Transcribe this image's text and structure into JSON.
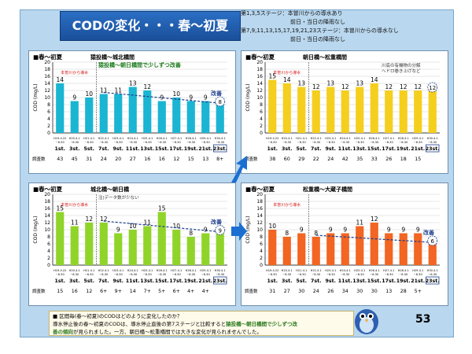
{
  "title": "CODの変化・・・春～初夏",
  "legend_lines": [
    "第1,3,5ステージ：本曽川からの導水あり",
    "　　　　　　　　　前日・当日の降雨なし",
    "第7,9,11,13,15,17,19,21,23ステージ：本曽川からの導水なし",
    "　　　　　　　　　前日・当日の降雨なし"
  ],
  "footer_text": {
    "line1": "■ 区間毎(春～初夏)のCODはどのように変化したのか？",
    "line2a": "導水停止後の春～初夏のCODは、導水停止直後の第7ステージと比較すると",
    "line2b": "猿投橋～朝日橋間で少しずつ改",
    "line3a": "善の傾向",
    "line3b": "が見られました。一方、朝日橋～松重橋間では大きな変化が見られませんでした。"
  },
  "page_number": "53",
  "chart_data": [
    {
      "type": "bar",
      "season": "■春～初夏",
      "section": "猿投橋～城北橋間",
      "note": "猿投橋～朝日橋間で少しずつ改善",
      "water_label": "本曽川から導水",
      "improve_label": "改善",
      "bar_color": "#1ab5d2",
      "ylabel": "COD (mg/L)",
      "ylim": [
        0,
        20
      ],
      "yticks": [
        0,
        2,
        4,
        6,
        8,
        10,
        12,
        14,
        16,
        18,
        20
      ],
      "dates": [
        "H19.4.22\n~6.30",
        "H20.4.1\n~6.30",
        "H21.4.1\n~6.30",
        "H22.4.1\n~6.30",
        "H23.4.1\n~6.30",
        "H24.4.1\n~6.30",
        "H25.4.1\n~6.30",
        "H26.4.1\n~6.30",
        "H27.4.1\n~6.30",
        "H28.4.1\n~6.30",
        "H29.4.1\n~6.30",
        "H30.4.1\n~6.30"
      ],
      "categories": [
        "1st.",
        "3st.",
        "5st.",
        "7st.",
        "9st.",
        "11st.",
        "13st.",
        "15st.",
        "17st.",
        "19st.",
        "21st.",
        "23st."
      ],
      "values": [
        14,
        9,
        10,
        11,
        11,
        13,
        12,
        9,
        10,
        9,
        9,
        8
      ],
      "survey_label": "調査数",
      "survey_counts": [
        "43",
        "45",
        "31",
        "24",
        "20",
        "27",
        "16",
        "16",
        "12",
        "15",
        "13",
        "8+"
      ]
    },
    {
      "type": "bar",
      "season": "■春～初夏",
      "section": "朝日橋～松重橋間",
      "note": "川底の有機物の分解\nヘドロ巻き上げなど",
      "water_label": "本曽川から導水",
      "improve_label": "",
      "bar_color": "#f5cf1e",
      "ylabel": "COD (mg/L)",
      "ylim": [
        0,
        20
      ],
      "yticks": [
        0,
        2,
        4,
        6,
        8,
        10,
        12,
        14,
        16,
        18,
        20
      ],
      "dates": [
        "H19.4.22\n~6.30",
        "H20.4.1\n~6.30",
        "H21.4.1\n~6.30",
        "H22.4.1\n~6.30",
        "H23.4.1\n~6.30",
        "H24.4.1\n~6.30",
        "H25.4.1\n~6.30",
        "H26.4.1\n~6.30",
        "H27.4.1\n~6.30",
        "H28.4.1\n~6.30",
        "H29.4.1\n~6.30",
        "H30.4.1\n~6.30"
      ],
      "categories": [
        "1st.",
        "3st.",
        "5st.",
        "7st.",
        "9st.",
        "11st.",
        "13st.",
        "15st.",
        "17st.",
        "19st.",
        "21st.",
        "23st."
      ],
      "values": [
        15,
        14,
        13,
        12,
        13,
        12,
        13,
        14,
        12,
        12,
        12,
        12
      ],
      "survey_label": "調査数",
      "survey_counts": [
        "38",
        "60",
        "29",
        "22",
        "24",
        "42",
        "35",
        "33",
        "26",
        "18",
        "15",
        ""
      ]
    },
    {
      "type": "bar",
      "season": "■春～初夏",
      "section": "城北橋～朝日橋",
      "note": "注)データ数が少ない",
      "water_label": "本曽川から導水",
      "improve_label": "改善",
      "bar_color": "#90d42a",
      "ylabel": "COD (mg/L)",
      "ylim": [
        0,
        20
      ],
      "yticks": [
        0,
        2,
        4,
        6,
        8,
        10,
        12,
        14,
        16,
        18,
        20
      ],
      "dates": [
        "H19.4.22\n~6.30",
        "H20.4.1\n~6.30",
        "H21.4.1\n~6.30",
        "H22.4.1\n~6.30",
        "H23.4.1\n~6.30",
        "H24.4.1\n~6.30",
        "H25.4.1\n~6.30",
        "H26.4.1\n~6.30",
        "H27.4.1\n~6.30",
        "H28.4.1\n~6.30",
        "H29.4.1\n~6.30",
        "H30.4.1\n~6.30"
      ],
      "categories": [
        "1st.",
        "3st.",
        "5st.",
        "7st.",
        "9st.",
        "11st.",
        "13st.",
        "15st.",
        "17st.",
        "19st.",
        "21st.",
        "23st."
      ],
      "values": [
        15,
        11,
        12,
        12,
        9,
        10,
        11,
        15,
        10,
        8,
        9,
        9
      ],
      "survey_label": "調査数",
      "survey_counts": [
        "15",
        "16",
        "12",
        "6+",
        "9+",
        "14",
        "7+",
        "5+",
        "6+",
        "4+",
        "4+",
        ""
      ]
    },
    {
      "type": "bar",
      "season": "■春～初夏",
      "section": "松重橋～大蔵子橋間",
      "note": "",
      "water_label": "本曽川から導水",
      "improve_label": "改善",
      "bar_color": "#f26522",
      "ylabel": "COD (mg/L)",
      "ylim": [
        0,
        20
      ],
      "yticks": [
        0,
        2,
        4,
        6,
        8,
        10,
        12,
        14,
        16,
        18,
        20
      ],
      "dates": [
        "H19.4.22\n~6.30",
        "H20.4.1\n~6.30",
        "H21.4.1\n~6.30",
        "H22.4.1\n~6.30",
        "H23.4.1\n~6.30",
        "H24.4.1\n~6.30",
        "H25.4.1\n~6.30",
        "H26.4.1\n~6.30",
        "H27.4.1\n~6.30",
        "H28.4.1\n~6.30",
        "H29.4.1\n~6.30",
        "H30.4.1\n~6.30"
      ],
      "categories": [
        "1st.",
        "3st.",
        "5st.",
        "7st.",
        "9st.",
        "11st.",
        "13st.",
        "15st.",
        "17st.",
        "19st.",
        "21st.",
        "23st."
      ],
      "values": [
        10,
        8,
        9,
        8,
        9,
        9,
        11,
        12,
        9,
        9,
        9,
        6
      ],
      "survey_label": "調査数",
      "survey_counts": [
        "31",
        "27",
        "30",
        "24",
        "26",
        "34",
        "30",
        "30",
        "13",
        "28",
        "5+",
        ""
      ]
    }
  ]
}
